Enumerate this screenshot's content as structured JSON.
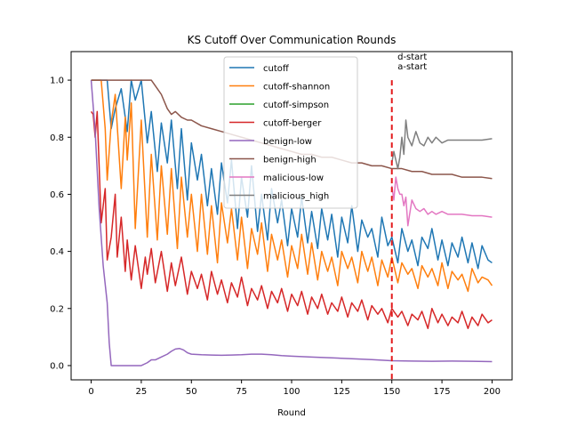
{
  "chart_data": {
    "type": "line",
    "title": "KS Cutoff Over Communication Rounds",
    "xlabel": "Round",
    "ylabel": "",
    "xlim": [
      -10,
      210
    ],
    "ylim": [
      -0.05,
      1.1
    ],
    "xticks": [
      0,
      25,
      50,
      75,
      100,
      125,
      150,
      175,
      200
    ],
    "yticks": [
      0.0,
      0.2,
      0.4,
      0.6,
      0.8,
      1.0
    ],
    "xtick_labels": [
      "0",
      "25",
      "50",
      "75",
      "100",
      "125",
      "150",
      "175",
      "200"
    ],
    "ytick_labels": [
      "0.0",
      "0.2",
      "0.4",
      "0.6",
      "0.8",
      "1.0"
    ],
    "grid": false,
    "legend_position": "upper center",
    "annotations": [
      {
        "x": 150,
        "text": "d-start",
        "style": "vertical dashed red line at x=150"
      },
      {
        "x": 150,
        "text": "a-start"
      }
    ],
    "colors": {
      "cutoff": "#1f77b4",
      "cutoff-shannon": "#ff7f0e",
      "cutoff-simpson": "#2ca02c",
      "cutoff-berger": "#d62728",
      "benign-low": "#9467bd",
      "benign-high": "#8c564b",
      "malicious-low": "#e377c2",
      "malicious_high": "#7f7f7f",
      "vline": "#e31a1c"
    },
    "series": [
      {
        "name": "cutoff",
        "x": [
          0,
          5,
          8,
          10,
          12,
          15,
          18,
          20,
          22,
          25,
          28,
          30,
          33,
          35,
          38,
          40,
          43,
          45,
          48,
          50,
          53,
          55,
          58,
          60,
          63,
          65,
          68,
          70,
          73,
          75,
          78,
          80,
          83,
          85,
          88,
          90,
          93,
          95,
          98,
          100,
          103,
          105,
          108,
          110,
          113,
          115,
          118,
          120,
          123,
          125,
          128,
          130,
          133,
          135,
          138,
          140,
          143,
          145,
          148,
          150,
          153,
          155,
          158,
          160,
          163,
          165,
          168,
          170,
          173,
          175,
          178,
          180,
          183,
          185,
          188,
          190,
          193,
          195,
          198,
          200
        ],
        "y": [
          1.0,
          1.0,
          1.0,
          0.83,
          0.9,
          0.97,
          0.82,
          1.0,
          0.93,
          1.0,
          0.78,
          0.89,
          0.68,
          0.85,
          0.71,
          0.86,
          0.62,
          0.83,
          0.58,
          0.78,
          0.65,
          0.74,
          0.56,
          0.69,
          0.53,
          0.71,
          0.57,
          0.72,
          0.48,
          0.66,
          0.52,
          0.7,
          0.47,
          0.6,
          0.44,
          0.62,
          0.5,
          0.58,
          0.42,
          0.55,
          0.45,
          0.59,
          0.43,
          0.54,
          0.41,
          0.55,
          0.44,
          0.53,
          0.38,
          0.52,
          0.43,
          0.56,
          0.4,
          0.51,
          0.45,
          0.48,
          0.38,
          0.52,
          0.42,
          0.45,
          0.36,
          0.48,
          0.4,
          0.44,
          0.35,
          0.45,
          0.41,
          0.48,
          0.37,
          0.44,
          0.35,
          0.43,
          0.38,
          0.45,
          0.36,
          0.43,
          0.34,
          0.42,
          0.37,
          0.36
        ]
      },
      {
        "name": "cutoff-shannon",
        "x": [
          0,
          5,
          7,
          8,
          10,
          12,
          15,
          17,
          18,
          20,
          22,
          25,
          28,
          30,
          33,
          35,
          38,
          40,
          43,
          45,
          48,
          50,
          53,
          55,
          58,
          60,
          63,
          65,
          68,
          70,
          73,
          75,
          78,
          80,
          83,
          85,
          88,
          90,
          93,
          95,
          98,
          100,
          103,
          105,
          108,
          110,
          113,
          115,
          118,
          120,
          123,
          125,
          128,
          130,
          133,
          135,
          138,
          140,
          143,
          145,
          148,
          150,
          153,
          155,
          158,
          160,
          163,
          165,
          168,
          170,
          173,
          175,
          178,
          180,
          183,
          185,
          188,
          190,
          193,
          195,
          198,
          200
        ],
        "y": [
          1.0,
          1.0,
          0.83,
          0.65,
          0.85,
          0.95,
          0.62,
          0.87,
          0.72,
          0.92,
          0.48,
          0.86,
          0.45,
          0.74,
          0.44,
          0.7,
          0.46,
          0.69,
          0.41,
          0.66,
          0.45,
          0.6,
          0.4,
          0.6,
          0.39,
          0.56,
          0.36,
          0.57,
          0.43,
          0.55,
          0.37,
          0.52,
          0.34,
          0.48,
          0.39,
          0.5,
          0.33,
          0.46,
          0.37,
          0.44,
          0.31,
          0.42,
          0.34,
          0.46,
          0.32,
          0.43,
          0.3,
          0.4,
          0.33,
          0.38,
          0.28,
          0.4,
          0.34,
          0.38,
          0.29,
          0.4,
          0.33,
          0.38,
          0.28,
          0.37,
          0.31,
          0.38,
          0.29,
          0.36,
          0.32,
          0.34,
          0.27,
          0.35,
          0.31,
          0.34,
          0.28,
          0.36,
          0.27,
          0.33,
          0.3,
          0.32,
          0.26,
          0.34,
          0.29,
          0.31,
          0.3,
          0.28
        ]
      },
      {
        "name": "cutoff-simpson",
        "x": [],
        "y": []
      },
      {
        "name": "cutoff-berger",
        "x": [
          0,
          1,
          2,
          3,
          5,
          7,
          8,
          10,
          12,
          13,
          15,
          17,
          18,
          20,
          22,
          25,
          27,
          28,
          30,
          32,
          35,
          38,
          40,
          42,
          45,
          48,
          50,
          53,
          55,
          58,
          60,
          63,
          65,
          68,
          70,
          73,
          75,
          78,
          80,
          83,
          85,
          88,
          90,
          93,
          95,
          98,
          100,
          103,
          105,
          108,
          110,
          113,
          115,
          118,
          120,
          123,
          125,
          128,
          130,
          133,
          135,
          138,
          140,
          143,
          145,
          148,
          150,
          153,
          155,
          158,
          160,
          163,
          165,
          168,
          170,
          173,
          175,
          178,
          180,
          183,
          185,
          188,
          190,
          193,
          195,
          198,
          200
        ],
        "y": [
          0.89,
          0.88,
          0.8,
          0.89,
          0.5,
          0.62,
          0.37,
          0.45,
          0.6,
          0.38,
          0.52,
          0.33,
          0.44,
          0.3,
          0.42,
          0.27,
          0.38,
          0.32,
          0.41,
          0.29,
          0.4,
          0.26,
          0.36,
          0.28,
          0.38,
          0.25,
          0.33,
          0.27,
          0.32,
          0.23,
          0.33,
          0.25,
          0.3,
          0.22,
          0.29,
          0.24,
          0.31,
          0.21,
          0.27,
          0.23,
          0.28,
          0.2,
          0.26,
          0.22,
          0.27,
          0.19,
          0.25,
          0.21,
          0.26,
          0.18,
          0.24,
          0.2,
          0.25,
          0.18,
          0.22,
          0.19,
          0.24,
          0.17,
          0.22,
          0.19,
          0.23,
          0.16,
          0.21,
          0.18,
          0.2,
          0.15,
          0.2,
          0.17,
          0.19,
          0.14,
          0.18,
          0.16,
          0.19,
          0.13,
          0.2,
          0.15,
          0.18,
          0.14,
          0.17,
          0.15,
          0.19,
          0.13,
          0.17,
          0.14,
          0.18,
          0.15,
          0.16
        ]
      },
      {
        "name": "benign-low",
        "x": [
          0,
          2,
          4,
          6,
          8,
          9,
          10,
          12,
          15,
          20,
          25,
          28,
          30,
          32,
          35,
          38,
          40,
          42,
          44,
          46,
          48,
          50,
          55,
          60,
          65,
          70,
          75,
          80,
          85,
          90,
          95,
          100,
          110,
          120,
          130,
          140,
          150,
          160,
          170,
          180,
          190,
          200
        ],
        "y": [
          1.0,
          0.82,
          0.55,
          0.35,
          0.22,
          0.08,
          0.0,
          0.0,
          0.0,
          0.0,
          0.0,
          0.01,
          0.02,
          0.02,
          0.03,
          0.04,
          0.05,
          0.058,
          0.06,
          0.055,
          0.045,
          0.04,
          0.038,
          0.037,
          0.036,
          0.037,
          0.038,
          0.04,
          0.04,
          0.038,
          0.035,
          0.033,
          0.03,
          0.027,
          0.024,
          0.021,
          0.017,
          0.016,
          0.015,
          0.016,
          0.015,
          0.014
        ]
      },
      {
        "name": "benign-high",
        "x": [
          0,
          10,
          20,
          30,
          33,
          35,
          38,
          40,
          42,
          45,
          48,
          50,
          55,
          60,
          65,
          70,
          75,
          80,
          85,
          90,
          95,
          100,
          105,
          110,
          115,
          120,
          125,
          130,
          135,
          140,
          145,
          150,
          155,
          160,
          165,
          170,
          175,
          180,
          185,
          190,
          195,
          200
        ],
        "y": [
          1.0,
          1.0,
          1.0,
          1.0,
          0.97,
          0.95,
          0.9,
          0.88,
          0.89,
          0.87,
          0.86,
          0.86,
          0.84,
          0.83,
          0.82,
          0.81,
          0.8,
          0.79,
          0.78,
          0.77,
          0.76,
          0.75,
          0.74,
          0.74,
          0.73,
          0.73,
          0.72,
          0.71,
          0.71,
          0.7,
          0.7,
          0.69,
          0.69,
          0.68,
          0.68,
          0.67,
          0.67,
          0.67,
          0.66,
          0.66,
          0.66,
          0.655
        ]
      },
      {
        "name": "malicious-low",
        "x": [
          150,
          151,
          152,
          153,
          154,
          155,
          156,
          157,
          158,
          160,
          162,
          164,
          166,
          168,
          170,
          172,
          175,
          178,
          180,
          185,
          190,
          195,
          200
        ],
        "y": [
          0.63,
          0.58,
          0.66,
          0.62,
          0.6,
          0.6,
          0.56,
          0.59,
          0.49,
          0.58,
          0.55,
          0.54,
          0.55,
          0.53,
          0.54,
          0.53,
          0.54,
          0.53,
          0.53,
          0.53,
          0.525,
          0.525,
          0.52
        ]
      },
      {
        "name": "malicious_high",
        "x": [
          150,
          151,
          152,
          153,
          154,
          155,
          156,
          157,
          158,
          160,
          162,
          164,
          166,
          168,
          170,
          172,
          175,
          178,
          180,
          185,
          190,
          195,
          200
        ],
        "y": [
          0.71,
          0.75,
          0.72,
          0.69,
          0.73,
          0.8,
          0.74,
          0.86,
          0.8,
          0.77,
          0.82,
          0.78,
          0.77,
          0.8,
          0.78,
          0.8,
          0.78,
          0.79,
          0.79,
          0.79,
          0.79,
          0.79,
          0.795
        ]
      }
    ]
  }
}
